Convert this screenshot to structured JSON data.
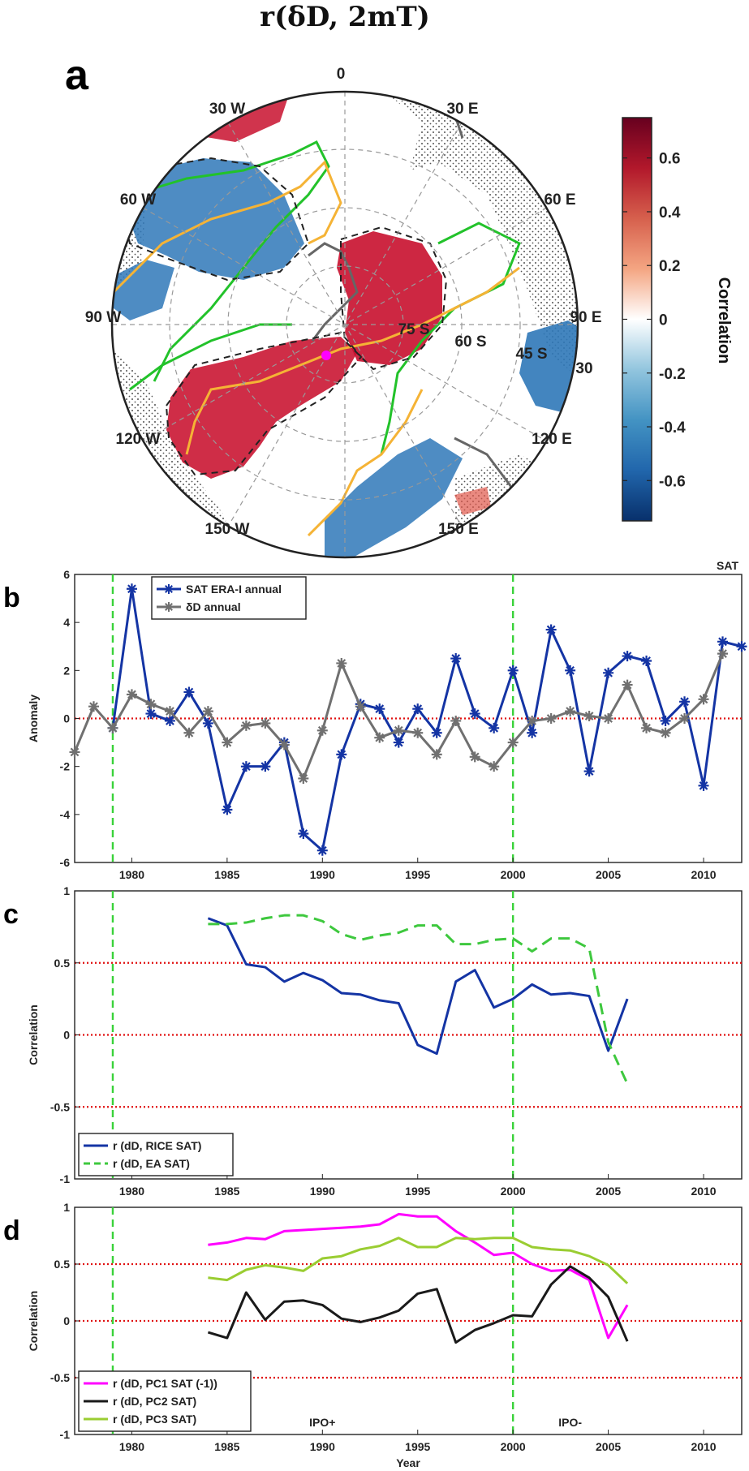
{
  "map": {
    "title": "r(δD, 2mT)",
    "panel_label": "a",
    "lon_labels": [
      "0",
      "30 E",
      "60 E",
      "90 E",
      "120 E",
      "150 E",
      "30 W",
      "60 W",
      "90 W",
      "120 W",
      "150 W"
    ],
    "lat_labels": [
      "75 S",
      "60 S",
      "45 S",
      "30"
    ],
    "colorbar": {
      "label": "Correlation",
      "ticks": [
        "0.6",
        "0.4",
        "0.2",
        "0",
        "-0.2",
        "-0.4",
        "-0.6"
      ],
      "tick_values": [
        0.6,
        0.4,
        0.2,
        0,
        -0.2,
        -0.4,
        -0.6
      ],
      "range": [
        -0.75,
        0.75
      ],
      "colors": [
        "#08306b",
        "#2166ac",
        "#4393c3",
        "#92c5de",
        "#ffffff",
        "#f4a582",
        "#d6604d",
        "#b2182b",
        "#67001f"
      ]
    },
    "contour_colors": {
      "green": "#22c22a",
      "orange": "#f5b335",
      "gray": "#666666"
    }
  },
  "chart_data": [
    {
      "type": "line",
      "panel_label": "b",
      "corner_label": "SAT",
      "xlabel": "",
      "ylabel": "Anomaly",
      "xlim": [
        1977,
        2012
      ],
      "ylim": [
        -6,
        6
      ],
      "yticks": [
        -6,
        -4,
        -2,
        0,
        2,
        4,
        6
      ],
      "xticks": [
        1980,
        1985,
        1990,
        1995,
        2000,
        2005,
        2010
      ],
      "vlines": [
        1979,
        2000
      ],
      "hlines": [
        0
      ],
      "legend_placement": "top-left",
      "series": [
        {
          "name": "SAT ERA-I annual",
          "color": "#1434a4",
          "marker": "star",
          "x": [
            1979,
            1980,
            1981,
            1982,
            1983,
            1984,
            1985,
            1986,
            1987,
            1988,
            1989,
            1990,
            1991,
            1992,
            1993,
            1994,
            1995,
            1996,
            1997,
            1998,
            1999,
            2000,
            2001,
            2002,
            2003,
            2004,
            2005,
            2006,
            2007,
            2008,
            2009,
            2010,
            2011,
            2012
          ],
          "values": [
            -0.4,
            5.4,
            0.2,
            -0.1,
            1.1,
            -0.2,
            -3.8,
            -2.0,
            -2.0,
            -1.0,
            -4.8,
            -5.5,
            -1.5,
            0.6,
            0.4,
            -1.0,
            0.4,
            -0.6,
            2.5,
            0.2,
            -0.4,
            2.0,
            -0.6,
            3.7,
            2.0,
            -2.2,
            1.9,
            2.6,
            2.4,
            -0.1,
            0.7,
            -2.8,
            3.2,
            3.0
          ]
        },
        {
          "name": "δD annual",
          "color": "#707070",
          "marker": "star",
          "x": [
            1977,
            1978,
            1979,
            1980,
            1981,
            1982,
            1983,
            1984,
            1985,
            1986,
            1987,
            1988,
            1989,
            1990,
            1991,
            1992,
            1993,
            1994,
            1995,
            1996,
            1997,
            1998,
            1999,
            2000,
            2001,
            2002,
            2003,
            2004,
            2005,
            2006,
            2007,
            2008,
            2009,
            2010,
            2011
          ],
          "values": [
            -1.4,
            0.5,
            -0.4,
            1.0,
            0.6,
            0.3,
            -0.6,
            0.3,
            -1.0,
            -0.3,
            -0.2,
            -1.1,
            -2.5,
            -0.5,
            2.3,
            0.5,
            -0.8,
            -0.5,
            -0.6,
            -1.5,
            -0.1,
            -1.6,
            -2.0,
            -1.0,
            -0.1,
            0.0,
            0.3,
            0.1,
            0.0,
            1.4,
            -0.4,
            -0.6,
            0.0,
            0.8,
            2.7
          ]
        }
      ]
    },
    {
      "type": "line",
      "panel_label": "c",
      "xlabel": "",
      "ylabel": "Correlation",
      "xlim": [
        1977,
        2012
      ],
      "ylim": [
        -1,
        1
      ],
      "yticks": [
        -1,
        -0.5,
        0,
        0.5,
        1
      ],
      "xticks": [
        1980,
        1985,
        1990,
        1995,
        2000,
        2005,
        2010
      ],
      "vlines": [
        1979,
        2000
      ],
      "hlines": [
        0.5,
        0,
        -0.5
      ],
      "legend_placement": "bottom-left",
      "series": [
        {
          "name": "r (dD, RICE SAT)",
          "color": "#1434a4",
          "dash": "solid",
          "x": [
            1984,
            1985,
            1986,
            1987,
            1988,
            1989,
            1990,
            1991,
            1992,
            1993,
            1994,
            1995,
            1996,
            1997,
            1998,
            1999,
            2000,
            2001,
            2002,
            2003,
            2004,
            2005,
            2006
          ],
          "values": [
            0.81,
            0.76,
            0.49,
            0.47,
            0.37,
            0.43,
            0.38,
            0.29,
            0.28,
            0.24,
            0.22,
            -0.07,
            -0.13,
            0.37,
            0.45,
            0.19,
            0.25,
            0.35,
            0.28,
            0.29,
            0.27,
            -0.11,
            0.25
          ]
        },
        {
          "name": "r (dD, EA SAT)",
          "color": "#3ec83e",
          "dash": "dashed",
          "x": [
            1984,
            1985,
            1986,
            1987,
            1988,
            1989,
            1990,
            1991,
            1992,
            1993,
            1994,
            1995,
            1996,
            1997,
            1998,
            1999,
            2000,
            2001,
            2002,
            2003,
            2004,
            2005,
            2006
          ],
          "values": [
            0.77,
            0.77,
            0.78,
            0.81,
            0.83,
            0.83,
            0.79,
            0.7,
            0.66,
            0.69,
            0.71,
            0.76,
            0.76,
            0.63,
            0.63,
            0.66,
            0.67,
            0.58,
            0.67,
            0.67,
            0.6,
            -0.05,
            -0.34
          ]
        }
      ]
    },
    {
      "type": "line",
      "panel_label": "d",
      "xlabel": "Year",
      "ylabel": "Correlation",
      "xlim": [
        1977,
        2012
      ],
      "ylim": [
        -1,
        1
      ],
      "yticks": [
        -1,
        -0.5,
        0,
        0.5,
        1
      ],
      "xticks": [
        1980,
        1985,
        1990,
        1995,
        2000,
        2005,
        2010
      ],
      "vlines": [
        1979,
        2000
      ],
      "hlines": [
        0.5,
        0,
        -0.5
      ],
      "legend_placement": "bottom-left",
      "annotations": [
        {
          "text": "IPO+",
          "x": 1990,
          "y": -0.93
        },
        {
          "text": "IPO-",
          "x": 2003,
          "y": -0.93
        }
      ],
      "series": [
        {
          "name": "r (dD, PC1 SAT (-1))",
          "color": "#ff00ff",
          "dash": "solid",
          "x": [
            1984,
            1985,
            1986,
            1987,
            1988,
            1989,
            1990,
            1991,
            1992,
            1993,
            1994,
            1995,
            1996,
            1997,
            1998,
            1999,
            2000,
            2001,
            2002,
            2003,
            2004,
            2005,
            2006
          ],
          "values": [
            0.67,
            0.69,
            0.73,
            0.72,
            0.79,
            0.8,
            0.81,
            0.82,
            0.83,
            0.85,
            0.94,
            0.92,
            0.92,
            0.79,
            0.69,
            0.58,
            0.6,
            0.5,
            0.44,
            0.45,
            0.36,
            -0.15,
            0.14
          ]
        },
        {
          "name": "r (dD, PC2 SAT)",
          "color": "#1a1a1a",
          "dash": "solid",
          "x": [
            1984,
            1985,
            1986,
            1987,
            1988,
            1989,
            1990,
            1991,
            1992,
            1993,
            1994,
            1995,
            1996,
            1997,
            1998,
            1999,
            2000,
            2001,
            2002,
            2003,
            2004,
            2005,
            2006
          ],
          "values": [
            -0.1,
            -0.15,
            0.25,
            0.01,
            0.17,
            0.18,
            0.14,
            0.02,
            -0.01,
            0.03,
            0.09,
            0.24,
            0.28,
            -0.19,
            -0.08,
            -0.02,
            0.05,
            0.04,
            0.32,
            0.48,
            0.38,
            0.21,
            -0.18
          ]
        },
        {
          "name": "r (dD, PC3 SAT)",
          "color": "#9acd32",
          "dash": "solid",
          "x": [
            1984,
            1985,
            1986,
            1987,
            1988,
            1989,
            1990,
            1991,
            1992,
            1993,
            1994,
            1995,
            1996,
            1997,
            1998,
            1999,
            2000,
            2001,
            2002,
            2003,
            2004,
            2005,
            2006
          ],
          "values": [
            0.38,
            0.36,
            0.45,
            0.49,
            0.47,
            0.44,
            0.55,
            0.57,
            0.63,
            0.66,
            0.73,
            0.65,
            0.65,
            0.73,
            0.72,
            0.73,
            0.73,
            0.65,
            0.63,
            0.62,
            0.57,
            0.49,
            0.33
          ]
        }
      ]
    }
  ]
}
